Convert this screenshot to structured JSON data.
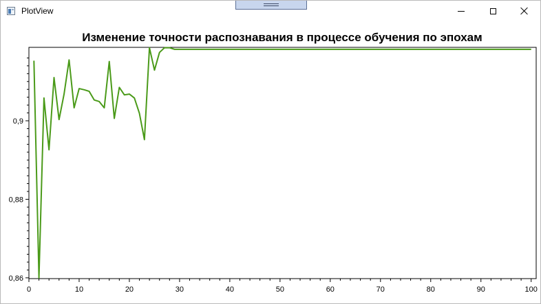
{
  "window": {
    "title": "PlotView"
  },
  "chart_data": {
    "type": "line",
    "title": "Изменение точности распознавания в процессе обучения по эпохам",
    "xlabel": "",
    "ylabel": "",
    "xlim": [
      0,
      101
    ],
    "ylim": [
      0.8598,
      0.9187
    ],
    "x_ticks": [
      0,
      10,
      20,
      30,
      40,
      50,
      60,
      70,
      80,
      90,
      100
    ],
    "y_ticks": [
      0.86,
      0.88,
      0.9
    ],
    "y_tick_labels": [
      "0,86",
      "0,88",
      "0,9"
    ],
    "grid": false,
    "legend": "none",
    "color": "#4a9a19",
    "series": [
      {
        "x": [
          1,
          2,
          3,
          4,
          5,
          6,
          7,
          8,
          9,
          10,
          11,
          12,
          13,
          14,
          15,
          16,
          17,
          18,
          19,
          20,
          21,
          22,
          23,
          24,
          25,
          26,
          27,
          28,
          29,
          30,
          31,
          32,
          33,
          34,
          35,
          36,
          37,
          38,
          39,
          40,
          41,
          42,
          43,
          44,
          45,
          46,
          47,
          48,
          49,
          50,
          51,
          52,
          53,
          54,
          55,
          56,
          57,
          58,
          59,
          60,
          61,
          62,
          63,
          64,
          65,
          66,
          67,
          68,
          69,
          70,
          71,
          72,
          73,
          74,
          75,
          76,
          77,
          78,
          79,
          80,
          81,
          82,
          83,
          84,
          85,
          86,
          87,
          88,
          89,
          90,
          91,
          92,
          93,
          94,
          95,
          96,
          97,
          98,
          99,
          100
        ],
        "values": [
          0.9153,
          0.86,
          0.9058,
          0.8926,
          0.911,
          0.9003,
          0.9068,
          0.9155,
          0.9033,
          0.9082,
          0.9079,
          0.9075,
          0.9053,
          0.9049,
          0.9033,
          0.9151,
          0.9006,
          0.9085,
          0.9066,
          0.9068,
          0.9058,
          0.9019,
          0.8952,
          0.9186,
          0.9129,
          0.9174,
          0.9186,
          0.9186,
          0.9182,
          0.9182,
          0.9182,
          0.9182,
          0.9182,
          0.9182,
          0.9182,
          0.9182,
          0.9182,
          0.9182,
          0.9182,
          0.9182,
          0.9182,
          0.9182,
          0.9182,
          0.9182,
          0.9182,
          0.9182,
          0.9182,
          0.9182,
          0.9182,
          0.9182,
          0.9182,
          0.9182,
          0.9182,
          0.9182,
          0.9182,
          0.9182,
          0.9182,
          0.9182,
          0.9182,
          0.9182,
          0.9182,
          0.9182,
          0.9182,
          0.9182,
          0.9182,
          0.9182,
          0.9182,
          0.9182,
          0.9182,
          0.9182,
          0.9182,
          0.9182,
          0.9182,
          0.9182,
          0.9182,
          0.9182,
          0.9182,
          0.9182,
          0.9182,
          0.9182,
          0.9182,
          0.9182,
          0.9182,
          0.9182,
          0.9182,
          0.9182,
          0.9182,
          0.9182,
          0.9182,
          0.9182,
          0.9182,
          0.9182,
          0.9182,
          0.9182,
          0.9182,
          0.9182,
          0.9182,
          0.9182,
          0.9182,
          0.9182
        ]
      }
    ]
  }
}
